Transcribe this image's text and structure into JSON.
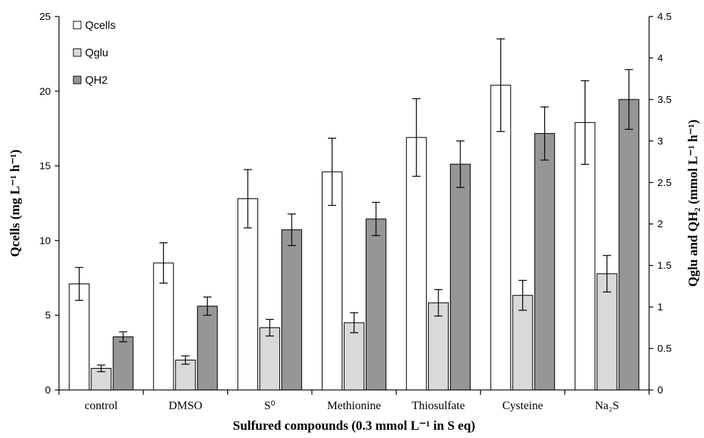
{
  "chart_data": {
    "type": "bar",
    "categories": [
      "control",
      "DMSO",
      "S⁰",
      "Methionine",
      "Thiosulfate",
      "Cysteine",
      "Na₂S"
    ],
    "xlabel": "Sulfured compounds (0.3 mmol L⁻¹ in S eq)",
    "ylabel_left": "Qcells (mg L⁻¹ h⁻¹)",
    "ylabel_right": "Qglu and QH₂ (mmol L⁻¹ h⁻¹)",
    "ylim_left": [
      0,
      25
    ],
    "ylim_right": [
      0,
      4.5
    ],
    "yticks_left": [
      "0",
      "5",
      "10",
      "15",
      "20",
      "25"
    ],
    "yticks_right": [
      "0",
      "0.5",
      "1",
      "1.5",
      "2",
      "2.5",
      "3",
      "3.5",
      "4",
      "4.5"
    ],
    "legend_position": "top-left",
    "grid": false,
    "series": [
      {
        "name": "Qcells",
        "axis": "left",
        "color": "#ffffff",
        "values": [
          7.1,
          8.5,
          12.8,
          14.6,
          16.9,
          20.4,
          17.9
        ],
        "errors": [
          1.1,
          1.35,
          1.95,
          2.25,
          2.6,
          3.1,
          2.8
        ]
      },
      {
        "name": "Qglu",
        "axis": "right",
        "color": "#d9d9d9",
        "values": [
          0.26,
          0.36,
          0.75,
          0.81,
          1.05,
          1.14,
          1.4
        ],
        "errors": [
          0.04,
          0.05,
          0.1,
          0.12,
          0.16,
          0.18,
          0.22
        ]
      },
      {
        "name": "QH2",
        "axis": "right",
        "color": "#969696",
        "values": [
          0.64,
          1.01,
          1.93,
          2.06,
          2.72,
          3.09,
          3.5
        ],
        "errors": [
          0.06,
          0.11,
          0.19,
          0.2,
          0.28,
          0.32,
          0.36
        ]
      }
    ]
  }
}
